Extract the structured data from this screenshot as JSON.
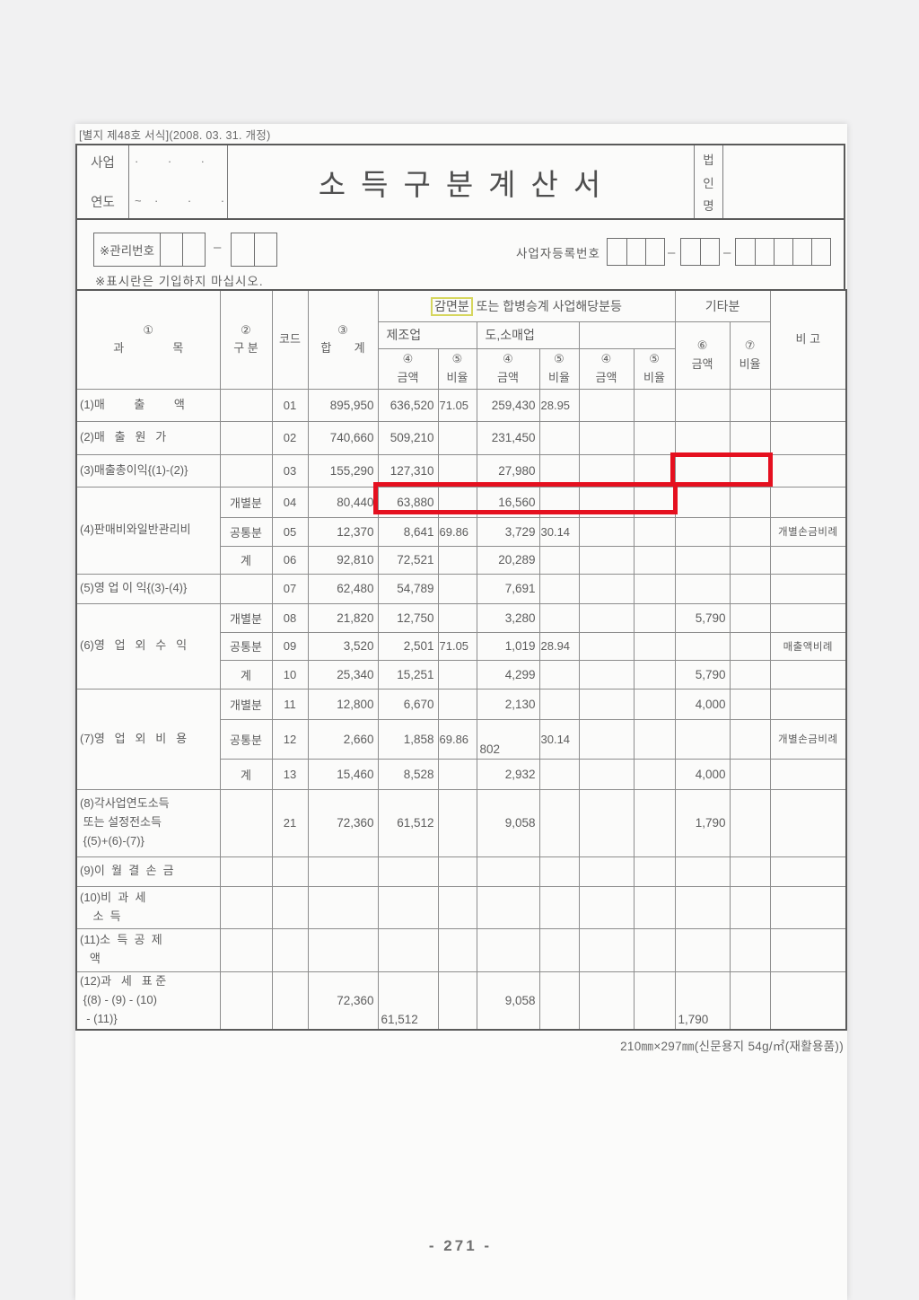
{
  "page": {
    "form_caption": "[별지 제48호 서식](2008. 03. 31. 개정)",
    "paper_spec": "210㎜×297㎜(신문용지 54g/㎡(재활용품))",
    "page_number": "- 271 -"
  },
  "header": {
    "year_label_top": "사업",
    "year_label_bottom": "연도",
    "year_dots": [
      "·         ·         ·",
      "~    ·         ·         ·"
    ],
    "title": "소득구분계산서",
    "corp_name_chars": [
      "법",
      "인",
      "명"
    ]
  },
  "control": {
    "mgmt_no_label": "※관리번호",
    "notice": "※표시란은 기입하지 마십시오.",
    "biz_reg_label": "사업자등록번호"
  },
  "annotations": {
    "red_box_color": "#e5101f",
    "highlight_border_color": "#d6d65e"
  },
  "table": {
    "header": {
      "c1_no": "①",
      "c1_label": "과               목",
      "c2_no": "②",
      "c2_label": "구 분",
      "code": "코드",
      "c3_no": "③",
      "c3_label": "합       계",
      "reduction_hl": "감면분",
      "reduction_rest": " 또는 합병승계 사업해당분등",
      "industry1": "제조업",
      "industry2": "도,소매업",
      "industry3": "",
      "others": "기타분",
      "c4_no": "④",
      "amount": "금액",
      "c5_no": "⑤",
      "rate": "비율",
      "c6_no": "⑥",
      "c7_no": "⑦",
      "note": "비 고"
    },
    "rows": [
      {
        "label": "(1)매         출         액",
        "gubun": "",
        "code": "01",
        "total": "895,950",
        "c1a": "636,520",
        "c1r": "71.05",
        "c2a": "259,430",
        "c2r": "28.95",
        "c3a": "",
        "c3r": "",
        "c4a": "",
        "c4r": "",
        "note": ""
      },
      {
        "label": "(2)매   출   원   가",
        "gubun": "",
        "code": "02",
        "total": "740,660",
        "c1a": "509,210",
        "c1r": "",
        "c2a": "231,450",
        "c2r": "",
        "c3a": "",
        "c3r": "",
        "c4a": "",
        "c4r": "",
        "note": ""
      },
      {
        "label": "(3)매출총이익{(1)-(2)}",
        "gubun": "",
        "code": "03",
        "total": "155,290",
        "c1a": "127,310",
        "c1r": "",
        "c2a": "27,980",
        "c2r": "",
        "c3a": "",
        "c3r": "",
        "c4a": "",
        "c4r": "",
        "note": ""
      },
      {
        "label": "(4)판매비와일반관리비",
        "labelRowspan": 3,
        "gubun": "개별분",
        "code": "04",
        "total": "80,440",
        "c1a": "63,880",
        "c1r": "",
        "c2a": "16,560",
        "c2r": "",
        "c3a": "",
        "c3r": "",
        "c4a": "",
        "c4r": "",
        "note": ""
      },
      {
        "gubun": "공통분",
        "code": "05",
        "total": "12,370",
        "c1a": "8,641",
        "c1r": "69.86",
        "c2a": "3,729",
        "c2r": "30.14",
        "c3a": "",
        "c3r": "",
        "c4a": "",
        "c4r": "",
        "note": "개별손금비례"
      },
      {
        "gubun": "계",
        "code": "06",
        "total": "92,810",
        "c1a": "72,521",
        "c1r": "",
        "c2a": "20,289",
        "c2r": "",
        "c3a": "",
        "c3r": "",
        "c4a": "",
        "c4r": "",
        "note": ""
      },
      {
        "label": "(5)영 업 이 익{(3)-(4)}",
        "gubun": "",
        "code": "07",
        "total": "62,480",
        "c1a": "54,789",
        "c1r": "",
        "c2a": "7,691",
        "c2r": "",
        "c3a": "",
        "c3r": "",
        "c4a": "",
        "c4r": "",
        "note": ""
      },
      {
        "label": "(6)영   업   외   수   익",
        "labelRowspan": 3,
        "gubun": "개별분",
        "code": "08",
        "total": "21,820",
        "c1a": "12,750",
        "c1r": "",
        "c2a": "3,280",
        "c2r": "",
        "c3a": "",
        "c3r": "",
        "c4a": "5,790",
        "c4r": "",
        "note": ""
      },
      {
        "gubun": "공통분",
        "code": "09",
        "total": "3,520",
        "c1a": "2,501",
        "c1r": "71.05",
        "c2a": "1,019",
        "c2r": "28.94",
        "c3a": "",
        "c3r": "",
        "c4a": "",
        "c4r": "",
        "note": "매출액비례"
      },
      {
        "gubun": "계",
        "code": "10",
        "total": "25,340",
        "c1a": "15,251",
        "c1r": "",
        "c2a": "4,299",
        "c2r": "",
        "c3a": "",
        "c3r": "",
        "c4a": "5,790",
        "c4r": "",
        "note": ""
      },
      {
        "label": "(7)영   업   외   비   용",
        "labelRowspan": 3,
        "gubun": "개별분",
        "code": "11",
        "total": "12,800",
        "c1a": "6,670",
        "c1r": "",
        "c2a": "2,130",
        "c2r": "",
        "c3a": "",
        "c3r": "",
        "c4a": "4,000",
        "c4r": "",
        "note": ""
      },
      {
        "gubun": "공통분",
        "code": "12",
        "total": "2,660",
        "c1a": "1,858",
        "c1r": "69.86",
        "c2a": "802",
        "c2r": "30.14",
        "c3a": "",
        "c3r": "",
        "c4a": "",
        "c4r": "",
        "note": "개별손금비례",
        "low": [
          "c2a"
        ]
      },
      {
        "gubun": "계",
        "code": "13",
        "total": "15,460",
        "c1a": "8,528",
        "c1r": "",
        "c2a": "2,932",
        "c2r": "",
        "c3a": "",
        "c3r": "",
        "c4a": "4,000",
        "c4r": "",
        "note": ""
      },
      {
        "label": "(8)각사업연도소득\n 또는 설정전소득\n {(5)+(6)-(7)}",
        "gubun": "",
        "code": "21",
        "total": "72,360",
        "c1a": "61,512",
        "c1r": "",
        "c2a": "9,058",
        "c2r": "",
        "c3a": "",
        "c3r": "",
        "c4a": "1,790",
        "c4r": "",
        "note": ""
      },
      {
        "label": "(9)이  월  결  손  금",
        "gubun": "",
        "code": "",
        "total": "",
        "c1a": "",
        "c1r": "",
        "c2a": "",
        "c2r": "",
        "c3a": "",
        "c3r": "",
        "c4a": "",
        "c4r": "",
        "note": ""
      },
      {
        "label": "(10)비  과  세\n    소  득",
        "gubun": "",
        "code": "",
        "total": "",
        "c1a": "",
        "c1r": "",
        "c2a": "",
        "c2r": "",
        "c3a": "",
        "c3r": "",
        "c4a": "",
        "c4r": "",
        "note": ""
      },
      {
        "label": "(11)소  득  공  제\n   액",
        "gubun": "",
        "code": "",
        "total": "",
        "c1a": "",
        "c1r": "",
        "c2a": "",
        "c2r": "",
        "c3a": "",
        "c3r": "",
        "c4a": "",
        "c4r": "",
        "note": ""
      },
      {
        "label": "(12)과   세   표 준\n {(8) - (9) - (10)\n  - (11)}",
        "gubun": "",
        "code": "",
        "total": "72,360",
        "c1a": "61,512",
        "c1r": "",
        "c2a": "9,058",
        "c2r": "",
        "c3a": "",
        "c3r": "",
        "c4a": "1,790",
        "c4r": "",
        "note": "",
        "low": [
          "c1a",
          "c4a"
        ]
      }
    ]
  }
}
